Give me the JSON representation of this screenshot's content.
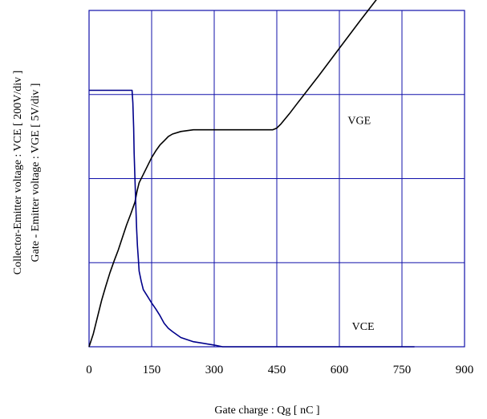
{
  "chart_data": {
    "type": "line",
    "title": "",
    "xlabel": "Gate charge  :  Qg  [ nC ]",
    "ylabel_line1": "Collector-Emitter voltage : VCE [ 200V/div ]",
    "ylabel_line2": "Gate - Emitter voltage  :  VGE        [ 5V/div ]",
    "xlim": [
      0,
      900
    ],
    "ylim_divisions": [
      0,
      4
    ],
    "x_ticks": [
      "0",
      "150",
      "300",
      "450",
      "600",
      "750",
      "900"
    ],
    "grid": true,
    "grid_color": "#1010aa",
    "annotations": [
      {
        "text": "VGE",
        "x": 620,
        "y": 2.65
      },
      {
        "text": "VCE",
        "x": 630,
        "y": 0.2
      }
    ],
    "series": [
      {
        "name": "VGE",
        "color": "#000000",
        "unit_per_div": "5V/div",
        "points": [
          [
            0,
            0
          ],
          [
            10,
            0.15
          ],
          [
            20,
            0.35
          ],
          [
            30,
            0.55
          ],
          [
            40,
            0.72
          ],
          [
            50,
            0.88
          ],
          [
            60,
            1.02
          ],
          [
            70,
            1.15
          ],
          [
            80,
            1.3
          ],
          [
            90,
            1.45
          ],
          [
            100,
            1.58
          ],
          [
            110,
            1.72
          ],
          [
            115,
            1.85
          ],
          [
            120,
            1.95
          ],
          [
            130,
            2.05
          ],
          [
            140,
            2.15
          ],
          [
            150,
            2.25
          ],
          [
            160,
            2.33
          ],
          [
            170,
            2.4
          ],
          [
            180,
            2.45
          ],
          [
            190,
            2.5
          ],
          [
            200,
            2.53
          ],
          [
            220,
            2.56
          ],
          [
            250,
            2.58
          ],
          [
            300,
            2.58
          ],
          [
            350,
            2.58
          ],
          [
            400,
            2.58
          ],
          [
            440,
            2.58
          ],
          [
            450,
            2.6
          ],
          [
            460,
            2.65
          ],
          [
            480,
            2.77
          ],
          [
            500,
            2.9
          ],
          [
            550,
            3.22
          ],
          [
            600,
            3.55
          ],
          [
            650,
            3.88
          ],
          [
            700,
            4.2
          ],
          [
            750,
            4.55
          ],
          [
            780,
            4.75
          ]
        ]
      },
      {
        "name": "VCE",
        "color": "#00008b",
        "unit_per_div": "200V/div",
        "points": [
          [
            0,
            3.05
          ],
          [
            100,
            3.05
          ],
          [
            103,
            3.05
          ],
          [
            105,
            2.9
          ],
          [
            107,
            2.6
          ],
          [
            108,
            2.3
          ],
          [
            110,
            2.0
          ],
          [
            112,
            1.7
          ],
          [
            114,
            1.4
          ],
          [
            116,
            1.2
          ],
          [
            118,
            1.05
          ],
          [
            120,
            0.9
          ],
          [
            125,
            0.78
          ],
          [
            130,
            0.68
          ],
          [
            140,
            0.6
          ],
          [
            150,
            0.52
          ],
          [
            160,
            0.45
          ],
          [
            170,
            0.37
          ],
          [
            180,
            0.28
          ],
          [
            190,
            0.22
          ],
          [
            200,
            0.18
          ],
          [
            220,
            0.11
          ],
          [
            250,
            0.06
          ],
          [
            300,
            0.02
          ],
          [
            320,
            0.0
          ],
          [
            400,
            0.0
          ],
          [
            600,
            0.0
          ],
          [
            700,
            0.0
          ],
          [
            780,
            0.0
          ]
        ]
      }
    ]
  }
}
